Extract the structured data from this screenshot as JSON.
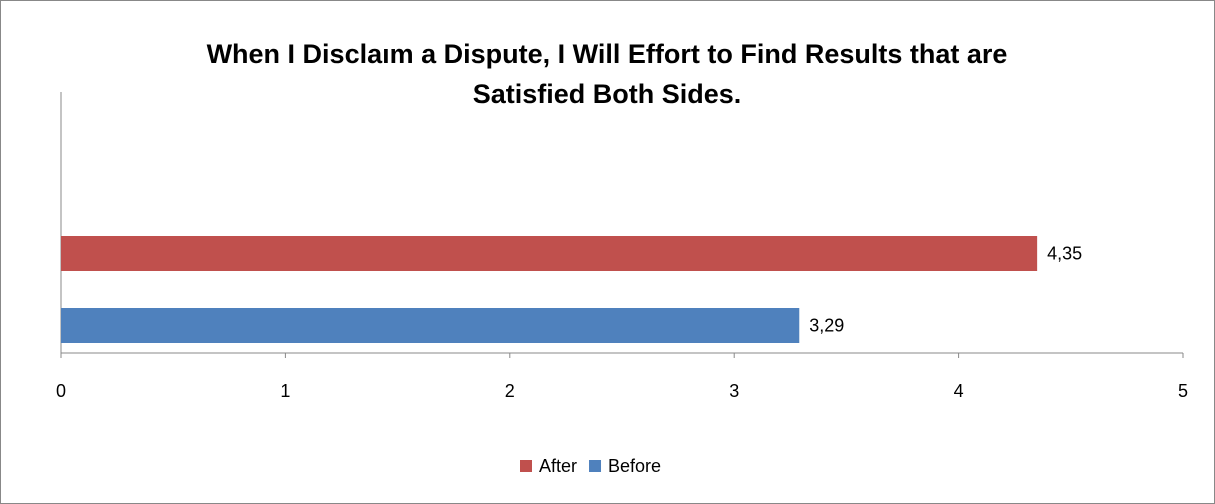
{
  "chart_data": {
    "type": "bar",
    "orientation": "horizontal",
    "title": "When I Disclaım a Dispute, I Will Effort to Find Results that are Satisfied Both Sides.",
    "categories": [
      null
    ],
    "series": [
      {
        "name": "After",
        "color": "#c0504d",
        "values": [
          4.35
        ],
        "value_labels": [
          "4,35"
        ]
      },
      {
        "name": "Before",
        "color": "#4f81bd",
        "values": [
          3.29
        ],
        "value_labels": [
          "3,29"
        ]
      }
    ],
    "xlim": [
      0,
      5
    ],
    "xticks": [
      0,
      1,
      2,
      3,
      4,
      5
    ],
    "legend": "bottom"
  }
}
